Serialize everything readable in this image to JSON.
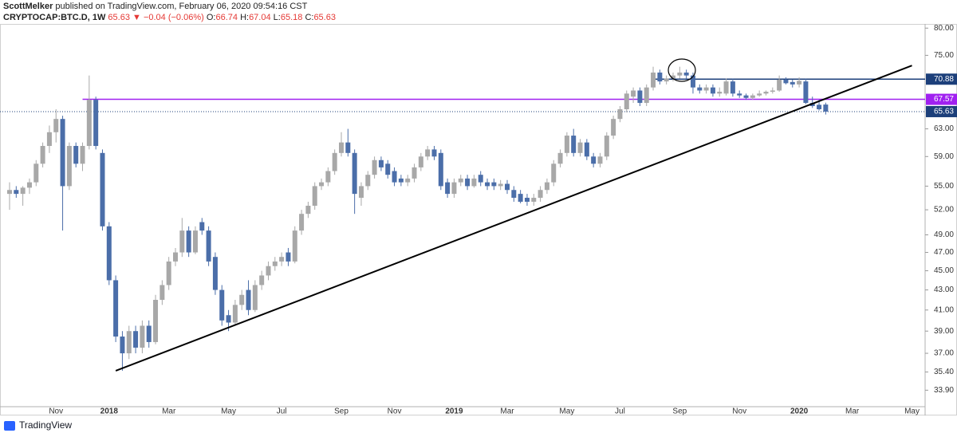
{
  "header": {
    "author": "ScottMelker",
    "published": "published on TradingView.com, February 06, 2020 09:54:16 CST",
    "symbol": "CRYPTOCAP:BTC.D, 1W",
    "last": "65.63",
    "change": "▼ −0.04 (−0.06%)",
    "quote": [
      {
        "label": "O:",
        "value": "66.74"
      },
      {
        "label": "H:",
        "value": "67.04"
      },
      {
        "label": "L:",
        "value": "65.18"
      },
      {
        "label": "C:",
        "value": "65.63"
      }
    ]
  },
  "footer": {
    "brand": "TradingView"
  },
  "chart_data": {
    "type": "candlestick",
    "log_scale": true,
    "grid": false,
    "up_color": "#a8a8a8",
    "down_color": "#4b6ea9",
    "ylim": [
      32.6,
      80.8
    ],
    "yticks": [
      {
        "value": 80,
        "label": "80.00"
      },
      {
        "value": 75,
        "label": "75.00"
      },
      {
        "value": 63,
        "label": "63.00"
      },
      {
        "value": 59,
        "label": "59.00"
      },
      {
        "value": 55,
        "label": "55.00"
      },
      {
        "value": 52,
        "label": "52.00"
      },
      {
        "value": 49,
        "label": "49.00"
      },
      {
        "value": 47,
        "label": "47.00"
      },
      {
        "value": 45,
        "label": "45.00"
      },
      {
        "value": 43,
        "label": "43.00"
      },
      {
        "value": 41,
        "label": "41.00"
      },
      {
        "value": 39,
        "label": "39.00"
      },
      {
        "value": 37,
        "label": "37.00"
      },
      {
        "value": 35.4,
        "label": "35.40"
      },
      {
        "value": 33.9,
        "label": "33.90"
      }
    ],
    "categories": [
      null,
      null,
      null,
      null,
      null,
      null,
      null,
      "Nov",
      null,
      null,
      null,
      null,
      null,
      null,
      null,
      "2018",
      null,
      null,
      null,
      null,
      null,
      null,
      null,
      null,
      "Mar",
      null,
      null,
      null,
      null,
      null,
      null,
      null,
      null,
      "May",
      null,
      null,
      null,
      null,
      null,
      null,
      null,
      "Jul",
      null,
      null,
      null,
      null,
      null,
      null,
      null,
      null,
      "Sep",
      null,
      null,
      null,
      null,
      null,
      null,
      null,
      "Nov",
      null,
      null,
      null,
      null,
      null,
      null,
      null,
      null,
      "2019",
      null,
      null,
      null,
      null,
      null,
      null,
      null,
      "Mar",
      null,
      null,
      null,
      null,
      null,
      null,
      null,
      null,
      "May",
      null,
      null,
      null,
      null,
      null,
      null,
      null,
      "Jul",
      null,
      null,
      null,
      null,
      null,
      null,
      null,
      null,
      "Sep",
      null,
      null,
      null,
      null,
      null,
      null,
      null,
      null,
      "Nov",
      null,
      null,
      null,
      null,
      null,
      null,
      null,
      null,
      "2020",
      null,
      null,
      null,
      null,
      null,
      null,
      null,
      "Mar",
      null,
      null,
      null,
      null,
      null,
      null,
      null,
      null,
      "May"
    ],
    "ohlc": [
      [
        54,
        55.5,
        52,
        54.5
      ],
      [
        54.5,
        55,
        53.5,
        54
      ],
      [
        54,
        55,
        52.5,
        54.8
      ],
      [
        54.8,
        56,
        54,
        55.5
      ],
      [
        55.5,
        58.5,
        55,
        58
      ],
      [
        58,
        61,
        57.5,
        60.5
      ],
      [
        60.5,
        63.5,
        59.5,
        62.5
      ],
      [
        62.5,
        66,
        61,
        64.5
      ],
      [
        64.5,
        65,
        49.5,
        55
      ],
      [
        55,
        61,
        54.5,
        60.5
      ],
      [
        60.5,
        61,
        57.5,
        58
      ],
      [
        58,
        61,
        57,
        60.5
      ],
      [
        60.5,
        71.5,
        60,
        67.5
      ],
      [
        67.5,
        68,
        60,
        60.5
      ],
      [
        59.5,
        60,
        49.5,
        50
      ],
      [
        50,
        50.5,
        43.5,
        44
      ],
      [
        44,
        44.5,
        38,
        38.5
      ],
      [
        38.5,
        39,
        35.5,
        37
      ],
      [
        37,
        39.5,
        36.5,
        39
      ],
      [
        39,
        39.5,
        37,
        37.5
      ],
      [
        37.5,
        40,
        37,
        39.5
      ],
      [
        39.5,
        40,
        37.5,
        38
      ],
      [
        38,
        42.5,
        37.8,
        42
      ],
      [
        42,
        44,
        41.5,
        43.5
      ],
      [
        43.5,
        46.5,
        43,
        46
      ],
      [
        46,
        47.5,
        45.5,
        47
      ],
      [
        47,
        51,
        46.5,
        49.5
      ],
      [
        49.5,
        50,
        46.5,
        47
      ],
      [
        47,
        50,
        46.8,
        49.5
      ],
      [
        50.5,
        51,
        49,
        49.5
      ],
      [
        49.5,
        50,
        45.5,
        46
      ],
      [
        46.5,
        47,
        42.5,
        43
      ],
      [
        43,
        43.5,
        39.5,
        40
      ],
      [
        40.5,
        41,
        39,
        39.8
      ],
      [
        39.8,
        42,
        39.5,
        41.5
      ],
      [
        41.5,
        43,
        41,
        42.5
      ],
      [
        43,
        44,
        40.5,
        41
      ],
      [
        41,
        44,
        40.8,
        43.5
      ],
      [
        43.5,
        45,
        43,
        44.5
      ],
      [
        44.5,
        46,
        44,
        45.5
      ],
      [
        45.5,
        46.5,
        45,
        46
      ],
      [
        46,
        47,
        45.5,
        46.5
      ],
      [
        47,
        47.5,
        45.5,
        46
      ],
      [
        46,
        50,
        45.8,
        49.5
      ],
      [
        49.5,
        52,
        49,
        51.5
      ],
      [
        51.5,
        53,
        51,
        52.5
      ],
      [
        52.5,
        55.5,
        52,
        55
      ],
      [
        55,
        56,
        54.5,
        55.5
      ],
      [
        55.5,
        57.5,
        55,
        57
      ],
      [
        57,
        60,
        56.5,
        59.5
      ],
      [
        59.5,
        62.5,
        59,
        61
      ],
      [
        61,
        63,
        59,
        59.5
      ],
      [
        59.5,
        60,
        51.5,
        54
      ],
      [
        53.5,
        55.5,
        52.5,
        55
      ],
      [
        55,
        57,
        54.5,
        56.5
      ],
      [
        56.5,
        59,
        56,
        58.5
      ],
      [
        58.5,
        59,
        57,
        57.5
      ],
      [
        58,
        58.5,
        56,
        56.5
      ],
      [
        57,
        57.5,
        55,
        55.5
      ],
      [
        56,
        56.5,
        55,
        55.5
      ],
      [
        55.5,
        56.5,
        55,
        56
      ],
      [
        56,
        58,
        55.5,
        57.5
      ],
      [
        57.5,
        59.5,
        57,
        59
      ],
      [
        59,
        60.5,
        58.5,
        60
      ],
      [
        60,
        60.5,
        58.5,
        59
      ],
      [
        59.5,
        60,
        54.5,
        55
      ],
      [
        55.5,
        56,
        53.5,
        54
      ],
      [
        54,
        56,
        53.5,
        55.5
      ],
      [
        55.5,
        56.5,
        55,
        56
      ],
      [
        56,
        56.5,
        54.5,
        55
      ],
      [
        55,
        56.5,
        54.8,
        56
      ],
      [
        56.5,
        57,
        55,
        55.5
      ],
      [
        55.5,
        56,
        54.5,
        55
      ],
      [
        55.5,
        56,
        54.5,
        55
      ],
      [
        55,
        55.8,
        54.5,
        55.3
      ],
      [
        55.3,
        55.8,
        54,
        54.5
      ],
      [
        54.5,
        55,
        53,
        53.5
      ],
      [
        54,
        54.5,
        52.8,
        53
      ],
      [
        53.5,
        54,
        52.5,
        53
      ],
      [
        53,
        54,
        52.5,
        53.5
      ],
      [
        53.5,
        55,
        53,
        54.5
      ],
      [
        54.5,
        56,
        54,
        55.5
      ],
      [
        55.5,
        58.5,
        55,
        58
      ],
      [
        58,
        60,
        57.5,
        59.5
      ],
      [
        59.5,
        62.5,
        59,
        62
      ],
      [
        62,
        63,
        59,
        59.5
      ],
      [
        59.5,
        61.5,
        59,
        61
      ],
      [
        61,
        61.5,
        58.5,
        59
      ],
      [
        59,
        59.5,
        57.5,
        58
      ],
      [
        58,
        59.5,
        57.5,
        59
      ],
      [
        59,
        62.5,
        58.5,
        62
      ],
      [
        62,
        65,
        61.5,
        64.5
      ],
      [
        64.5,
        66.5,
        64,
        66
      ],
      [
        66,
        69,
        65.5,
        68.5
      ],
      [
        68,
        69.5,
        67,
        69
      ],
      [
        69,
        69.5,
        66.5,
        67
      ],
      [
        67,
        70,
        66.5,
        69.5
      ],
      [
        69.5,
        73,
        69,
        72
      ],
      [
        72,
        72.5,
        70,
        70.5
      ],
      [
        70.5,
        71.5,
        70,
        71
      ],
      [
        71,
        72,
        70.5,
        71.5
      ],
      [
        71.5,
        73,
        71,
        72
      ],
      [
        72,
        72.5,
        71,
        71.5
      ],
      [
        71.5,
        72,
        68.5,
        69.5
      ],
      [
        69.5,
        70,
        68.5,
        69
      ],
      [
        69,
        70,
        68.5,
        69.5
      ],
      [
        69.5,
        70,
        68,
        68.5
      ],
      [
        68.5,
        69.5,
        68,
        68.8
      ],
      [
        68.5,
        71,
        68.2,
        70.5
      ],
      [
        70.5,
        71,
        68,
        68.5
      ],
      [
        68.5,
        69,
        67.8,
        68.2
      ],
      [
        68.2,
        68.5,
        67.5,
        67.8
      ],
      [
        67.8,
        68.5,
        67.5,
        68.2
      ],
      [
        68.2,
        69,
        68,
        68.5
      ],
      [
        68.5,
        69,
        68.2,
        68.8
      ],
      [
        68.8,
        69.5,
        68.5,
        69
      ],
      [
        69,
        71.5,
        68.8,
        70.8
      ],
      [
        70.8,
        71.2,
        70,
        70.2
      ],
      [
        70.4,
        70.8,
        69.5,
        70
      ],
      [
        70,
        71.2,
        69.5,
        70.6
      ],
      [
        70.5,
        71,
        66.8,
        67
      ],
      [
        67,
        68,
        66.2,
        66.5
      ],
      [
        66.7,
        67.5,
        65.8,
        66
      ],
      [
        66.74,
        67.04,
        65.18,
        65.63
      ],
      null,
      null,
      null,
      null,
      null,
      null,
      null,
      null,
      null,
      null,
      null,
      null,
      null
    ],
    "levels": [
      {
        "value": 70.88,
        "label": "70.88",
        "color": "#1c3f7a",
        "from": 97
      },
      {
        "value": 67.57,
        "label": "67.57",
        "color": "#a020f0",
        "from": 11
      }
    ],
    "last_price": {
      "value": 65.63,
      "label": "65.63",
      "color": "#1c3f7a"
    },
    "trendline": {
      "from": [
        16,
        35.5
      ],
      "to": [
        136,
        73.2
      ],
      "color": "#000000"
    }
  }
}
